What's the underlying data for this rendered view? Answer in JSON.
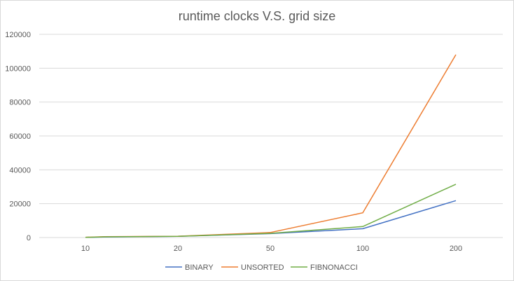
{
  "chart_data": {
    "type": "line",
    "title": "runtime clocks V.S. grid size",
    "xlabel": "",
    "ylabel": "",
    "categories": [
      "10",
      "20",
      "50",
      "100",
      "200"
    ],
    "ylim": [
      0,
      120000
    ],
    "yticks": [
      0,
      20000,
      40000,
      60000,
      80000,
      100000,
      120000
    ],
    "ytick_labels": [
      "0",
      "20000",
      "40000",
      "60000",
      "80000",
      "100000",
      "120000"
    ],
    "grid": true,
    "legend_position": "bottom",
    "series": [
      {
        "name": "BINARY",
        "color": "#4472c4",
        "x": [
          10,
          12,
          20,
          50,
          100,
          200
        ],
        "values": [
          100,
          300,
          700,
          2300,
          5200,
          21800
        ]
      },
      {
        "name": "UNSORTED",
        "color": "#ed7d31",
        "x": [
          10,
          12,
          20,
          50,
          100,
          200
        ],
        "values": [
          150,
          500,
          800,
          3000,
          14600,
          108000
        ]
      },
      {
        "name": "FIBNONACCI",
        "color": "#70ad47",
        "x": [
          10,
          12,
          20,
          50,
          100,
          200
        ],
        "values": [
          120,
          400,
          750,
          2500,
          6500,
          31500
        ]
      }
    ]
  }
}
